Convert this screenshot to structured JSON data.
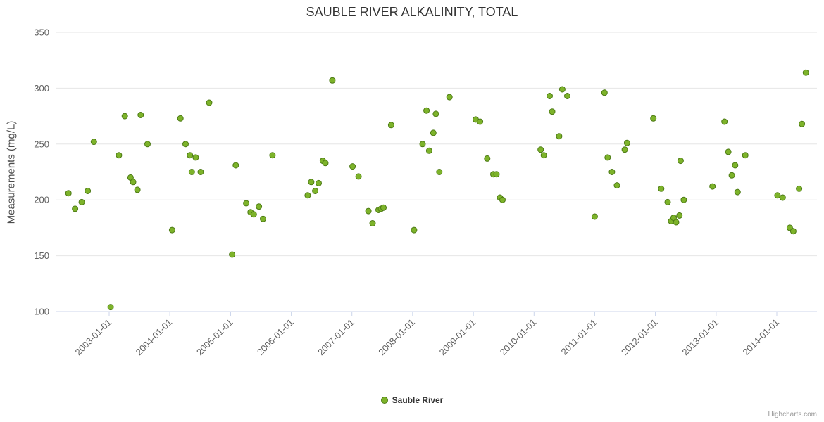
{
  "credits": "Highcharts.com",
  "colors": {
    "point_fill": "#7db32a",
    "point_stroke": "#4c7a14",
    "grid": "#e6e6e6",
    "axis_line": "#ccd6eb",
    "tick_label": "#606060",
    "title": "#333333"
  },
  "chart_data": {
    "type": "scatter",
    "title": "SAUBLE RIVER ALKALINITY, TOTAL",
    "xlabel": "",
    "ylabel": "Measurements (mg/L)",
    "ylim": [
      100,
      350
    ],
    "y_ticks": [
      100,
      150,
      200,
      250,
      300,
      350
    ],
    "x_ticks": [
      "2003-01-01",
      "2004-01-01",
      "2005-01-01",
      "2006-01-01",
      "2007-01-01",
      "2008-01-01",
      "2009-01-01",
      "2010-01-01",
      "2011-01-01",
      "2012-01-01",
      "2013-01-01",
      "2014-01-01"
    ],
    "grid": "horizontal",
    "legend_position": "bottom",
    "series": [
      {
        "name": "Sauble River",
        "points": [
          [
            "2002-05-01",
            206
          ],
          [
            "2002-06-10",
            192
          ],
          [
            "2002-07-20",
            198
          ],
          [
            "2002-08-25",
            208
          ],
          [
            "2002-10-01",
            252
          ],
          [
            "2003-01-10",
            104
          ],
          [
            "2003-03-01",
            240
          ],
          [
            "2003-04-05",
            275
          ],
          [
            "2003-05-10",
            220
          ],
          [
            "2003-05-25",
            216
          ],
          [
            "2003-06-20",
            209
          ],
          [
            "2003-07-10",
            276
          ],
          [
            "2003-08-20",
            250
          ],
          [
            "2004-01-15",
            173
          ],
          [
            "2004-03-05",
            273
          ],
          [
            "2004-04-05",
            250
          ],
          [
            "2004-05-01",
            240
          ],
          [
            "2004-05-12",
            225
          ],
          [
            "2004-06-05",
            238
          ],
          [
            "2004-07-05",
            225
          ],
          [
            "2004-08-25",
            287
          ],
          [
            "2005-01-10",
            151
          ],
          [
            "2005-02-01",
            231
          ],
          [
            "2005-04-05",
            197
          ],
          [
            "2005-05-01",
            189
          ],
          [
            "2005-05-20",
            187
          ],
          [
            "2005-06-20",
            194
          ],
          [
            "2005-07-15",
            183
          ],
          [
            "2005-09-10",
            240
          ],
          [
            "2006-04-10",
            204
          ],
          [
            "2006-05-01",
            216
          ],
          [
            "2006-05-25",
            208
          ],
          [
            "2006-06-15",
            215
          ],
          [
            "2006-07-10",
            235
          ],
          [
            "2006-07-25",
            233
          ],
          [
            "2006-09-05",
            307
          ],
          [
            "2007-01-05",
            230
          ],
          [
            "2007-02-10",
            221
          ],
          [
            "2007-04-10",
            190
          ],
          [
            "2007-05-05",
            179
          ],
          [
            "2007-06-10",
            191
          ],
          [
            "2007-06-25",
            192
          ],
          [
            "2007-07-10",
            193
          ],
          [
            "2007-08-25",
            267
          ],
          [
            "2008-01-10",
            173
          ],
          [
            "2008-03-01",
            250
          ],
          [
            "2008-03-25",
            280
          ],
          [
            "2008-04-10",
            244
          ],
          [
            "2008-05-05",
            260
          ],
          [
            "2008-05-20",
            277
          ],
          [
            "2008-06-10",
            225
          ],
          [
            "2008-08-10",
            292
          ],
          [
            "2009-01-15",
            272
          ],
          [
            "2009-02-10",
            270
          ],
          [
            "2009-03-25",
            237
          ],
          [
            "2009-05-01",
            223
          ],
          [
            "2009-05-20",
            223
          ],
          [
            "2009-06-10",
            202
          ],
          [
            "2009-06-25",
            200
          ],
          [
            "2010-02-10",
            245
          ],
          [
            "2010-03-01",
            240
          ],
          [
            "2010-04-05",
            293
          ],
          [
            "2010-04-20",
            279
          ],
          [
            "2010-06-01",
            257
          ],
          [
            "2010-06-20",
            299
          ],
          [
            "2010-07-20",
            293
          ],
          [
            "2011-01-01",
            185
          ],
          [
            "2011-03-01",
            296
          ],
          [
            "2011-03-20",
            238
          ],
          [
            "2011-04-15",
            225
          ],
          [
            "2011-05-15",
            213
          ],
          [
            "2011-07-01",
            245
          ],
          [
            "2011-07-15",
            251
          ],
          [
            "2011-12-20",
            273
          ],
          [
            "2012-02-05",
            210
          ],
          [
            "2012-03-15",
            198
          ],
          [
            "2012-04-05",
            181
          ],
          [
            "2012-04-20",
            184
          ],
          [
            "2012-05-05",
            180
          ],
          [
            "2012-05-25",
            186
          ],
          [
            "2012-06-01",
            235
          ],
          [
            "2012-06-20",
            200
          ],
          [
            "2012-12-10",
            212
          ],
          [
            "2013-02-20",
            270
          ],
          [
            "2013-03-15",
            243
          ],
          [
            "2013-04-05",
            222
          ],
          [
            "2013-04-25",
            231
          ],
          [
            "2013-05-10",
            207
          ],
          [
            "2013-06-25",
            240
          ],
          [
            "2014-01-05",
            204
          ],
          [
            "2014-02-05",
            202
          ],
          [
            "2014-03-20",
            175
          ],
          [
            "2014-04-10",
            172
          ],
          [
            "2014-05-15",
            210
          ],
          [
            "2014-06-01",
            268
          ],
          [
            "2014-06-25",
            314
          ]
        ]
      }
    ]
  }
}
